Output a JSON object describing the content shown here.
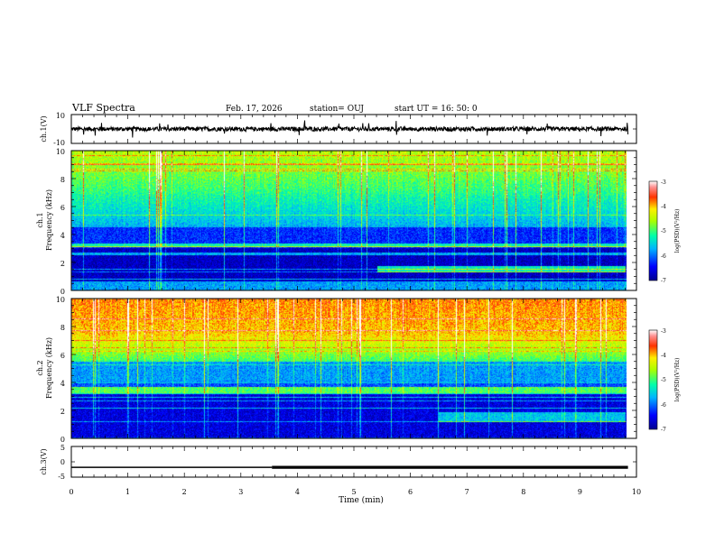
{
  "header": {
    "title": "VLF Spectra",
    "date": "Feb. 17, 2026",
    "station": "station= OUJ",
    "start": "start  UT =   16: 50: 0"
  },
  "chart_data": [
    {
      "type": "line",
      "id": "ch1-waveform",
      "ylabel": "ch.1(V)",
      "ylim": [
        -10,
        10
      ],
      "yticks": [
        "10",
        "-10"
      ],
      "baseline": 0,
      "noise_amplitude": 1.5
    },
    {
      "type": "heatmap",
      "id": "ch1-spectrogram",
      "ylabel_line1": "ch.1",
      "ylabel_line2": "Frequency (kHz)",
      "ylim": [
        0,
        10
      ],
      "yticks": [
        "0",
        "2",
        "4",
        "6",
        "8",
        "10"
      ],
      "colorbar": {
        "label": "log(PSD)(V²/Hz)",
        "ticks": [
          "-3",
          "-4",
          "-5",
          "-6",
          "-7"
        ],
        "range": [
          -7,
          -3
        ]
      }
    },
    {
      "type": "heatmap",
      "id": "ch2-spectrogram",
      "ylabel_line1": "ch.2",
      "ylabel_line2": "Frequency (kHz)",
      "ylim": [
        0,
        10
      ],
      "yticks": [
        "0",
        "2",
        "4",
        "6",
        "8",
        "10"
      ],
      "colorbar": {
        "label": "log(PSD)(V²/Hz)",
        "ticks": [
          "-3",
          "-4",
          "-5",
          "-6",
          "-7"
        ],
        "range": [
          -7,
          -3
        ]
      }
    },
    {
      "type": "line",
      "id": "ch3-signal",
      "ylabel": "ch.3(V)",
      "ylim": [
        -5,
        5
      ],
      "yticks": [
        "5",
        "0",
        "-5"
      ],
      "x": [
        0,
        3.55,
        3.55,
        9.85
      ],
      "y": [
        -1.8,
        -1.8,
        -1.8,
        -1.8
      ],
      "thick_from": 3.55
    }
  ],
  "xaxis": {
    "label": "Time (min)",
    "xlim": [
      0,
      10
    ],
    "ticks": [
      "0",
      "1",
      "2",
      "3",
      "4",
      "5",
      "6",
      "7",
      "8",
      "9",
      "10"
    ]
  }
}
